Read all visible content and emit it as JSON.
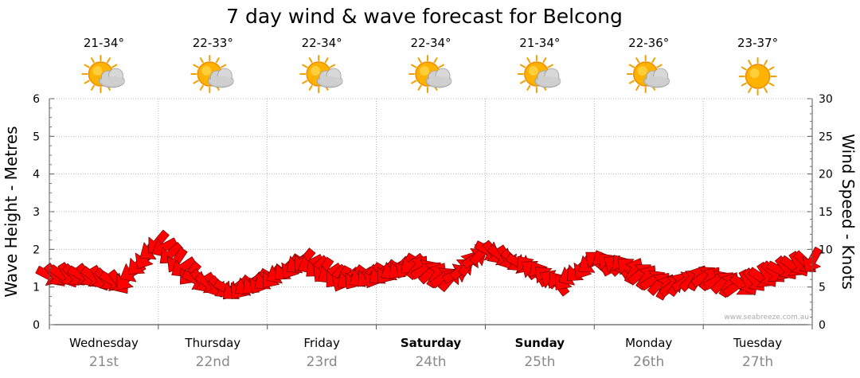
{
  "chart_data": {
    "type": "line",
    "title": "7 day wind & wave forecast for Belcong",
    "left_axis": {
      "label": "Wave Height - Metres",
      "min": 0,
      "max": 6,
      "ticks": [
        "0",
        "1",
        "2",
        "3",
        "4",
        "5",
        "6"
      ]
    },
    "right_axis": {
      "label": "Wind Speed - Knots",
      "min": 0,
      "max": 30,
      "ticks": [
        "0",
        "5",
        "10",
        "15",
        "20",
        "25",
        "30"
      ]
    },
    "grid": true,
    "days": [
      {
        "day": "Wednesday",
        "date": "21st",
        "temp": "21-34°",
        "weather": "partly-cloudy",
        "bold": false
      },
      {
        "day": "Thursday",
        "date": "22nd",
        "temp": "22-33°",
        "weather": "partly-cloudy",
        "bold": false
      },
      {
        "day": "Friday",
        "date": "23rd",
        "temp": "22-34°",
        "weather": "partly-cloudy",
        "bold": false
      },
      {
        "day": "Saturday",
        "date": "24th",
        "temp": "22-34°",
        "weather": "partly-cloudy",
        "bold": true
      },
      {
        "day": "Sunday",
        "date": "25th",
        "temp": "21-34°",
        "weather": "partly-cloudy",
        "bold": true
      },
      {
        "day": "Monday",
        "date": "26th",
        "temp": "22-36°",
        "weather": "partly-cloudy",
        "bold": false
      },
      {
        "day": "Tuesday",
        "date": "27th",
        "temp": "23-37°",
        "weather": "sunny",
        "bold": false
      }
    ],
    "series": [
      {
        "type": "wind-arrows",
        "unit": "knots",
        "color": "#ff0000",
        "day_offsets": [
          0.0,
          0.33,
          0.67,
          1.0,
          1.33,
          1.67,
          2.0,
          2.33,
          2.67,
          3.0,
          3.33,
          3.67,
          4.0,
          4.33,
          4.67,
          5.0,
          5.33,
          5.67,
          6.0,
          6.33,
          6.67,
          7.0
        ],
        "speeds": [
          6.5,
          6.5,
          5.5,
          11,
          6,
          4.5,
          6,
          8.5,
          6,
          6.5,
          8,
          6,
          10,
          8,
          5.5,
          8.5,
          7.5,
          5,
          6.5,
          5,
          7,
          8.5
        ],
        "directions": [
          "SE",
          "SE",
          "SW",
          "SW",
          "SE",
          "SW",
          "SW",
          "SW",
          "SW",
          "SW",
          "NE",
          "NE",
          "SE",
          "NW",
          "SW",
          "NW",
          "NE",
          "NE",
          "NE",
          "SE",
          "SE",
          "SW"
        ]
      }
    ],
    "credit": "www.seabreeze.com.au"
  }
}
